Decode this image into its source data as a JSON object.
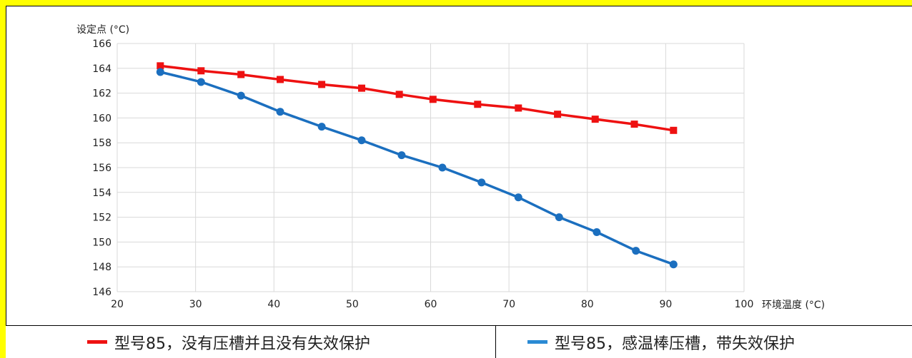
{
  "chart_data": {
    "type": "line",
    "ylabel": "设定点 (°C)",
    "xlabel": "环境温度 (°C)",
    "xlim": [
      20,
      100
    ],
    "ylim": [
      146,
      166
    ],
    "x_ticks": [
      "20",
      "30",
      "40",
      "50",
      "60",
      "70",
      "80",
      "90",
      "100"
    ],
    "y_ticks": [
      "166",
      "164",
      "162",
      "160",
      "158",
      "156",
      "154",
      "152",
      "150",
      "148",
      "146"
    ],
    "grid": true,
    "legend_position": "bottom",
    "series": [
      {
        "name": "型号85，没有压槽并且没有失效保护",
        "color": "#ee1111",
        "marker": "square",
        "x": [
          25.5,
          30.7,
          35.8,
          40.8,
          46.1,
          51.2,
          56.0,
          60.3,
          66.0,
          71.2,
          76.2,
          81.0,
          86.0,
          91.0
        ],
        "y": [
          164.2,
          163.8,
          163.5,
          163.1,
          162.7,
          162.4,
          161.9,
          161.5,
          161.1,
          160.8,
          160.3,
          159.9,
          159.5,
          159.0
        ]
      },
      {
        "name": "型号85，感温棒压槽，带失效保护",
        "color": "#1b6fbf",
        "marker": "circle",
        "x": [
          25.5,
          30.7,
          35.8,
          40.8,
          46.1,
          51.2,
          56.3,
          61.5,
          66.5,
          71.2,
          76.4,
          81.2,
          86.2,
          91.0
        ],
        "y": [
          163.7,
          162.9,
          161.8,
          160.5,
          159.3,
          158.2,
          157.0,
          156.0,
          154.8,
          153.6,
          152.0,
          150.8,
          149.3,
          148.2
        ]
      }
    ]
  },
  "legend": {
    "item1_label": "型号85，没有压槽并且没有失效保护",
    "item1_color": "#ee1111",
    "item2_label": "型号85，感温棒压槽，带失效保护",
    "item2_color": "#2a8ad4"
  }
}
